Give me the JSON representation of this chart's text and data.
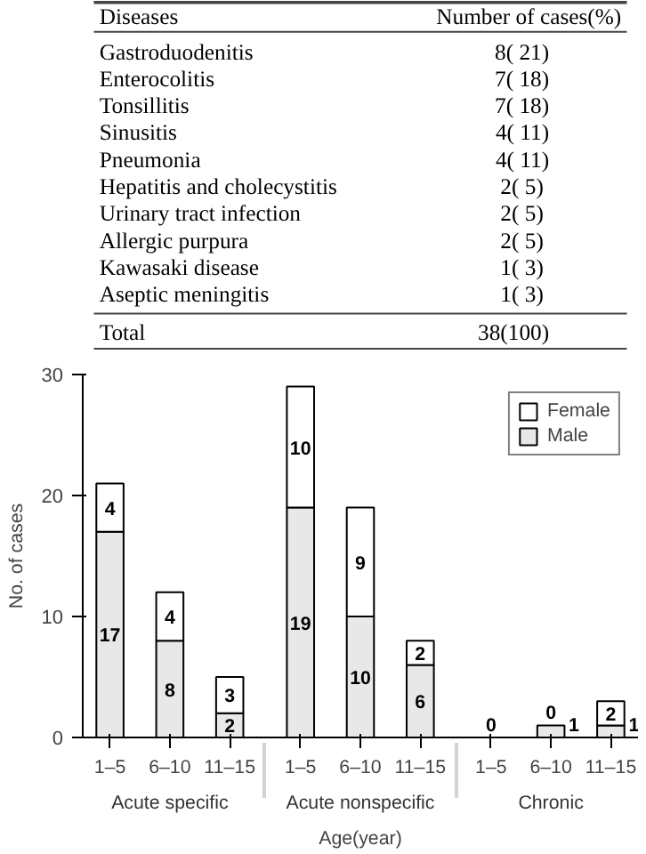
{
  "chart_data": [
    {
      "type": "other",
      "xlabel": "Diseases",
      "ylabel": "Number of cases(%)",
      "categories": [
        "Gastroduodenitis",
        "Enterocolitis",
        "Tonsillitis",
        "Sinusitis",
        "Pneumonia",
        "Hepatitis and cholecystitis",
        "Urinary tract infection",
        "Allergic purpura",
        "Kawasaki disease",
        "Aseptic meningitis",
        "Total"
      ],
      "value_labels": [
        "8( 21)",
        "7( 18)",
        "7( 18)",
        "4( 11)",
        "4( 11)",
        "2(  5)",
        "2(  5)",
        "2(  5)",
        "1(  3)",
        "1(  3)",
        "38(100)"
      ]
    },
    {
      "type": "bar",
      "stacked": true,
      "xlabel": "Age(year)",
      "ylabel": "No. of cases",
      "categories": [
        "1–5",
        "6–10",
        "11–15",
        "1–5",
        "6–10",
        "11–15",
        "1–5",
        "6–10",
        "11–15"
      ],
      "annotations": [
        "Acute specific",
        "Acute nonspecific",
        "Chronic"
      ],
      "series": [
        {
          "name": "Male",
          "color": "#e8e8e8",
          "values": [
            17,
            8,
            2,
            19,
            10,
            6,
            0,
            1,
            1
          ],
          "value_labels": [
            "17",
            "8",
            "2",
            "19",
            "10",
            "6",
            "0",
            "1",
            "1"
          ]
        },
        {
          "name": "Female",
          "color": "#ffffff",
          "values": [
            4,
            4,
            3,
            10,
            9,
            2,
            0,
            0,
            2
          ],
          "value_labels": [
            "4",
            "4",
            "3",
            "10",
            "9",
            "2",
            null,
            "0",
            "2"
          ]
        }
      ],
      "ylim": [
        0,
        30
      ],
      "yticks": [
        0,
        10,
        20,
        30
      ],
      "grid": false,
      "legend": "top right"
    }
  ]
}
